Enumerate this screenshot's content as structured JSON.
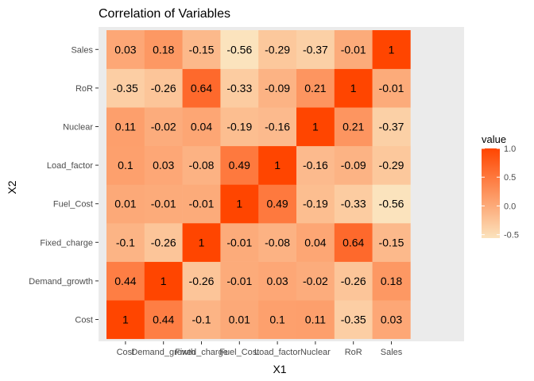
{
  "chart_data": {
    "type": "heatmap",
    "title": "Correlation of Variables",
    "xlabel": "X1",
    "ylabel": "X2",
    "variables": [
      "Cost",
      "Demand_growth",
      "Fixed_charge",
      "Fuel_Cost",
      "Load_factor",
      "Nuclear",
      "RoR",
      "Sales"
    ],
    "matrix": [
      [
        1,
        0.44,
        -0.1,
        0.01,
        0.1,
        0.11,
        -0.35,
        0.03
      ],
      [
        0.44,
        1,
        -0.26,
        -0.01,
        0.03,
        -0.02,
        -0.26,
        0.18
      ],
      [
        -0.1,
        -0.26,
        1,
        -0.01,
        -0.08,
        0.04,
        0.64,
        -0.15
      ],
      [
        0.01,
        -0.01,
        -0.01,
        1,
        0.49,
        -0.19,
        -0.33,
        -0.56
      ],
      [
        0.1,
        0.03,
        -0.08,
        0.49,
        1,
        -0.16,
        -0.09,
        -0.29
      ],
      [
        0.11,
        -0.02,
        0.04,
        -0.19,
        -0.16,
        1,
        0.21,
        -0.37
      ],
      [
        -0.35,
        -0.26,
        0.64,
        -0.33,
        -0.09,
        0.21,
        1,
        -0.01
      ],
      [
        0.03,
        0.18,
        -0.15,
        -0.56,
        -0.29,
        -0.37,
        -0.01,
        1
      ]
    ],
    "value_range": [
      -0.56,
      1
    ],
    "colors": {
      "low": "#fbe3bd",
      "high": "#ff4500",
      "panel_bg": "#ebebeb"
    },
    "legend": {
      "title": "value",
      "ticks": [
        1.0,
        0.5,
        0.0,
        -0.5
      ],
      "tick_labels": [
        "1.0",
        "0.5",
        "0.0",
        "-0.5"
      ],
      "position": "right"
    }
  }
}
